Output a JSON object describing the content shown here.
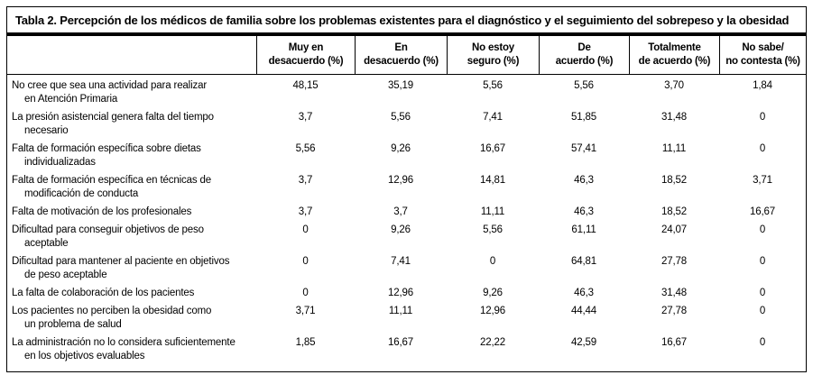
{
  "table": {
    "title": "Tabla 2. Percepción de los médicos de familia sobre los problemas existentes para el diagnóstico y el seguimiento del sobrepeso y la obesidad",
    "columns": [
      [
        "Muy en",
        "desacuerdo (%)"
      ],
      [
        "En",
        "desacuerdo (%)"
      ],
      [
        "No estoy",
        "seguro (%)"
      ],
      [
        "De",
        "acuerdo (%)"
      ],
      [
        "Totalmente",
        "de acuerdo (%)"
      ],
      [
        "No sabe/",
        "no contesta (%)"
      ]
    ],
    "rows": [
      {
        "lines": [
          "No cree que sea una actividad para realizar",
          "en Atención Primaria"
        ],
        "values": [
          "48,15",
          "35,19",
          "5,56",
          "5,56",
          "3,70",
          "1,84"
        ]
      },
      {
        "lines": [
          "La presión asistencial genera falta del tiempo",
          "necesario"
        ],
        "values": [
          "3,7",
          "5,56",
          "7,41",
          "51,85",
          "31,48",
          "0"
        ]
      },
      {
        "lines": [
          "Falta de formación específica sobre dietas",
          "individualizadas"
        ],
        "values": [
          "5,56",
          "9,26",
          "16,67",
          "57,41",
          "11,11",
          "0"
        ]
      },
      {
        "lines": [
          "Falta de formación específica en técnicas de",
          "modificación de conducta"
        ],
        "values": [
          "3,7",
          "12,96",
          "14,81",
          "46,3",
          "18,52",
          "3,71"
        ]
      },
      {
        "lines": [
          "Falta de motivación de los profesionales"
        ],
        "values": [
          "3,7",
          "3,7",
          "11,11",
          "46,3",
          "18,52",
          "16,67"
        ]
      },
      {
        "lines": [
          "Dificultad para conseguir objetivos de peso",
          "aceptable"
        ],
        "values": [
          "0",
          "9,26",
          "5,56",
          "61,11",
          "24,07",
          "0"
        ]
      },
      {
        "lines": [
          "Dificultad para mantener al paciente en objetivos",
          "de peso aceptable"
        ],
        "values": [
          "0",
          "7,41",
          "0",
          "64,81",
          "27,78",
          "0"
        ]
      },
      {
        "lines": [
          "La falta de colaboración de los pacientes"
        ],
        "values": [
          "0",
          "12,96",
          "9,26",
          "46,3",
          "31,48",
          "0"
        ]
      },
      {
        "lines": [
          "Los pacientes no perciben la obesidad como",
          "un problema de salud"
        ],
        "values": [
          "3,71",
          "11,11",
          "12,96",
          "44,44",
          "27,78",
          "0"
        ]
      },
      {
        "lines": [
          "La administración no lo considera suficientemente",
          "en los objetivos evaluables"
        ],
        "values": [
          "1,85",
          "16,67",
          "22,22",
          "42,59",
          "16,67",
          "0"
        ]
      }
    ]
  }
}
